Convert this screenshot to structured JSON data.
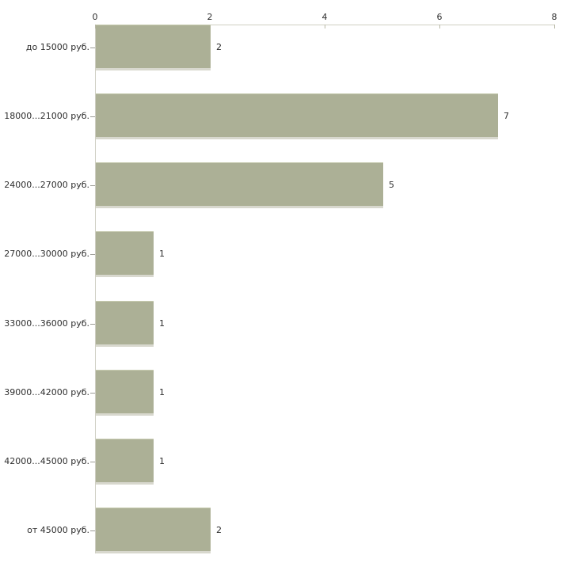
{
  "chart_data": {
    "type": "bar",
    "orientation": "horizontal",
    "title": "",
    "xlabel": "",
    "ylabel": "",
    "categories": [
      "до 15000 руб.",
      "18000...21000 руб.",
      "24000...27000 руб.",
      "27000...30000 руб.",
      "33000...36000 руб.",
      "39000...42000 руб.",
      "42000...45000 руб.",
      "от 45000 руб."
    ],
    "values": [
      2,
      7,
      5,
      1,
      1,
      1,
      1,
      2
    ],
    "x_ticks": [
      0,
      2,
      4,
      6,
      8
    ],
    "xlim": [
      0,
      8
    ],
    "axis_position": "top",
    "grid": false,
    "legend": false,
    "colors": {
      "bar_fill": "#acb096",
      "bar_bevel": "#d8d8ce",
      "axis_line": "#cfcfc3",
      "tick_mark": "#b8b8a6",
      "category_tick": "#9b9b95",
      "text": "#2e2e2e",
      "background": "#ffffff"
    }
  }
}
